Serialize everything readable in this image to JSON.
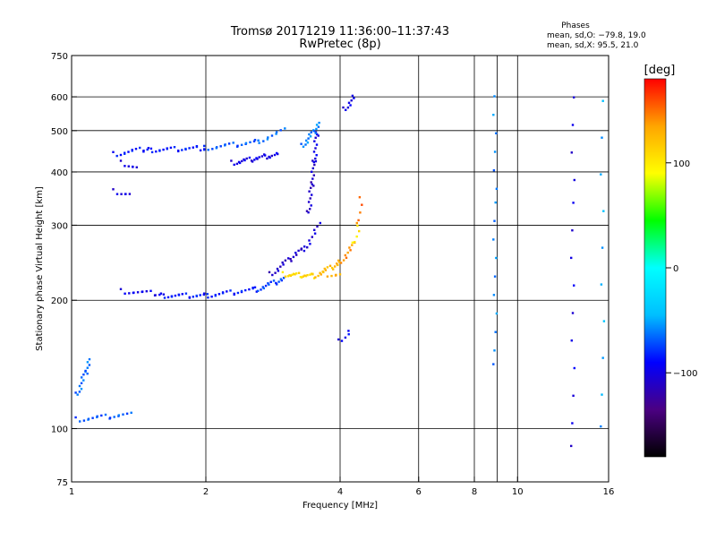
{
  "chart_data": {
    "type": "scatter",
    "title": "Tromsø 20171219 11:36:00–11:37:43",
    "subtitle": "RwPretec (8p)",
    "stats": {
      "title": "Phases",
      "line1": "mean, sd,O: −79.8, 19.0",
      "line2": "mean, sd,X:  95.5, 21.0"
    },
    "xlabel": "Frequency [MHz]",
    "ylabel": "Stationary phase Virtual Height [km]",
    "x_scale": "log",
    "y_scale": "log",
    "xlim": [
      1,
      16
    ],
    "ylim": [
      75,
      750
    ],
    "x_ticks": [
      {
        "value": 1,
        "label": "1"
      },
      {
        "value": 2,
        "label": "2"
      },
      {
        "value": 4,
        "label": "4"
      },
      {
        "value": 6,
        "label": "6"
      },
      {
        "value": 8,
        "label": "8"
      },
      {
        "value": 10,
        "label": "10"
      },
      {
        "value": 16,
        "label": "16"
      }
    ],
    "y_ticks": [
      {
        "value": 75,
        "label": "75"
      },
      {
        "value": 100,
        "label": "100"
      },
      {
        "value": 200,
        "label": "200"
      },
      {
        "value": 300,
        "label": "300"
      },
      {
        "value": 400,
        "label": "400"
      },
      {
        "value": 500,
        "label": "500"
      },
      {
        "value": 600,
        "label": "600"
      },
      {
        "value": 750,
        "label": "750"
      }
    ],
    "x_gridlines": [
      2,
      4,
      6,
      8,
      9,
      10
    ],
    "y_gridlines": [
      100,
      200,
      300,
      400,
      500,
      600
    ],
    "grid": true,
    "colorbar": {
      "label": "[deg]",
      "min": -180,
      "max": 180,
      "ticks": [
        {
          "value": 100,
          "label": "100"
        },
        {
          "value": 0,
          "label": "0"
        },
        {
          "value": -100,
          "label": "−100"
        }
      ],
      "colormap": [
        "#000000",
        "#4b0082",
        "#0000ff",
        "#00bfff",
        "#00ffff",
        "#00ff00",
        "#ffff00",
        "#ffa500",
        "#ff0000"
      ]
    },
    "series": [
      {
        "traces": [
          {
            "from": [
              1.25,
              440
            ],
            "to": [
              1.5,
              455
            ],
            "n": 14,
            "phase": -85
          },
          {
            "from": [
              1.5,
              450
            ],
            "to": [
              2.0,
              455
            ],
            "n": 22,
            "phase": -85
          },
          {
            "from": [
              2.0,
              455
            ],
            "to": [
              2.6,
              470
            ],
            "n": 18,
            "phase": -70
          },
          {
            "from": [
              2.6,
              470
            ],
            "to": [
              3.0,
              500
            ],
            "n": 10,
            "phase": -65
          },
          {
            "from": [
              1.6,
              205
            ],
            "to": [
              2.0,
              205
            ],
            "n": 18,
            "phase": -85
          },
          {
            "from": [
              2.0,
              205
            ],
            "to": [
              2.6,
              212
            ],
            "n": 20,
            "phase": -85
          },
          {
            "from": [
              2.6,
              212
            ],
            "to": [
              3.0,
              225
            ],
            "n": 16,
            "phase": -75
          },
          {
            "from": [
              1.3,
              210
            ],
            "to": [
              1.6,
              207
            ],
            "n": 14,
            "phase": -95
          },
          {
            "from": [
              2.8,
              230
            ],
            "to": [
              3.3,
              265
            ],
            "n": 18,
            "phase": -110
          },
          {
            "from": [
              3.3,
              260
            ],
            "to": [
              3.6,
              300
            ],
            "n": 10,
            "phase": -105
          },
          {
            "from": [
              3.4,
              320
            ],
            "to": [
              3.5,
              420
            ],
            "n": 18,
            "phase": -110
          },
          {
            "from": [
              3.5,
              420
            ],
            "to": [
              3.55,
              500
            ],
            "n": 12,
            "phase": -100
          },
          {
            "from": [
              2.3,
              420
            ],
            "to": [
              2.9,
              440
            ],
            "n": 26,
            "phase": -100
          },
          {
            "from": [
              3.3,
              460
            ],
            "to": [
              3.6,
              520
            ],
            "n": 16,
            "phase": -60
          },
          {
            "from": [
              1.03,
              105
            ],
            "to": [
              1.35,
              108
            ],
            "n": 18,
            "phase": -70
          },
          {
            "from": [
              1.03,
              120
            ],
            "to": [
              1.1,
              145
            ],
            "n": 16,
            "phase": -65
          },
          {
            "from": [
              1.25,
              360
            ],
            "to": [
              1.35,
              355
            ],
            "n": 6,
            "phase": -100
          },
          {
            "from": [
              1.3,
              420
            ],
            "to": [
              1.4,
              410
            ],
            "n": 6,
            "phase": -100
          },
          {
            "from": [
              8.9,
              140
            ],
            "to": [
              8.9,
              600
            ],
            "n": 16,
            "phase": -60
          },
          {
            "from": [
              13.3,
              90
            ],
            "to": [
              13.3,
              600
            ],
            "n": 14,
            "phase": -100
          },
          {
            "from": [
              15.5,
              100
            ],
            "to": [
              15.5,
              580
            ],
            "n": 10,
            "phase": -50
          },
          {
            "from": [
              4.1,
              560
            ],
            "to": [
              4.3,
              600
            ],
            "n": 8,
            "phase": -100
          },
          {
            "from": [
              4.0,
              160
            ],
            "to": [
              4.2,
              170
            ],
            "n": 5,
            "phase": -95
          }
        ]
      },
      {
        "traces": [
          {
            "from": [
              3.0,
              230
            ],
            "to": [
              3.5,
              228
            ],
            "n": 20,
            "phase": 110
          },
          {
            "from": [
              3.5,
              228
            ],
            "to": [
              4.0,
              245
            ],
            "n": 16,
            "phase": 125
          },
          {
            "from": [
              4.0,
              245
            ],
            "to": [
              4.3,
              270
            ],
            "n": 10,
            "phase": 140
          },
          {
            "from": [
              4.3,
              270
            ],
            "to": [
              4.4,
              300
            ],
            "n": 5,
            "phase": 100
          },
          {
            "from": [
              4.4,
              300
            ],
            "to": [
              4.45,
              350
            ],
            "n": 5,
            "phase": 150
          },
          {
            "from": [
              3.7,
              230
            ],
            "to": [
              4.0,
              230
            ],
            "n": 6,
            "phase": 130
          }
        ]
      }
    ]
  }
}
